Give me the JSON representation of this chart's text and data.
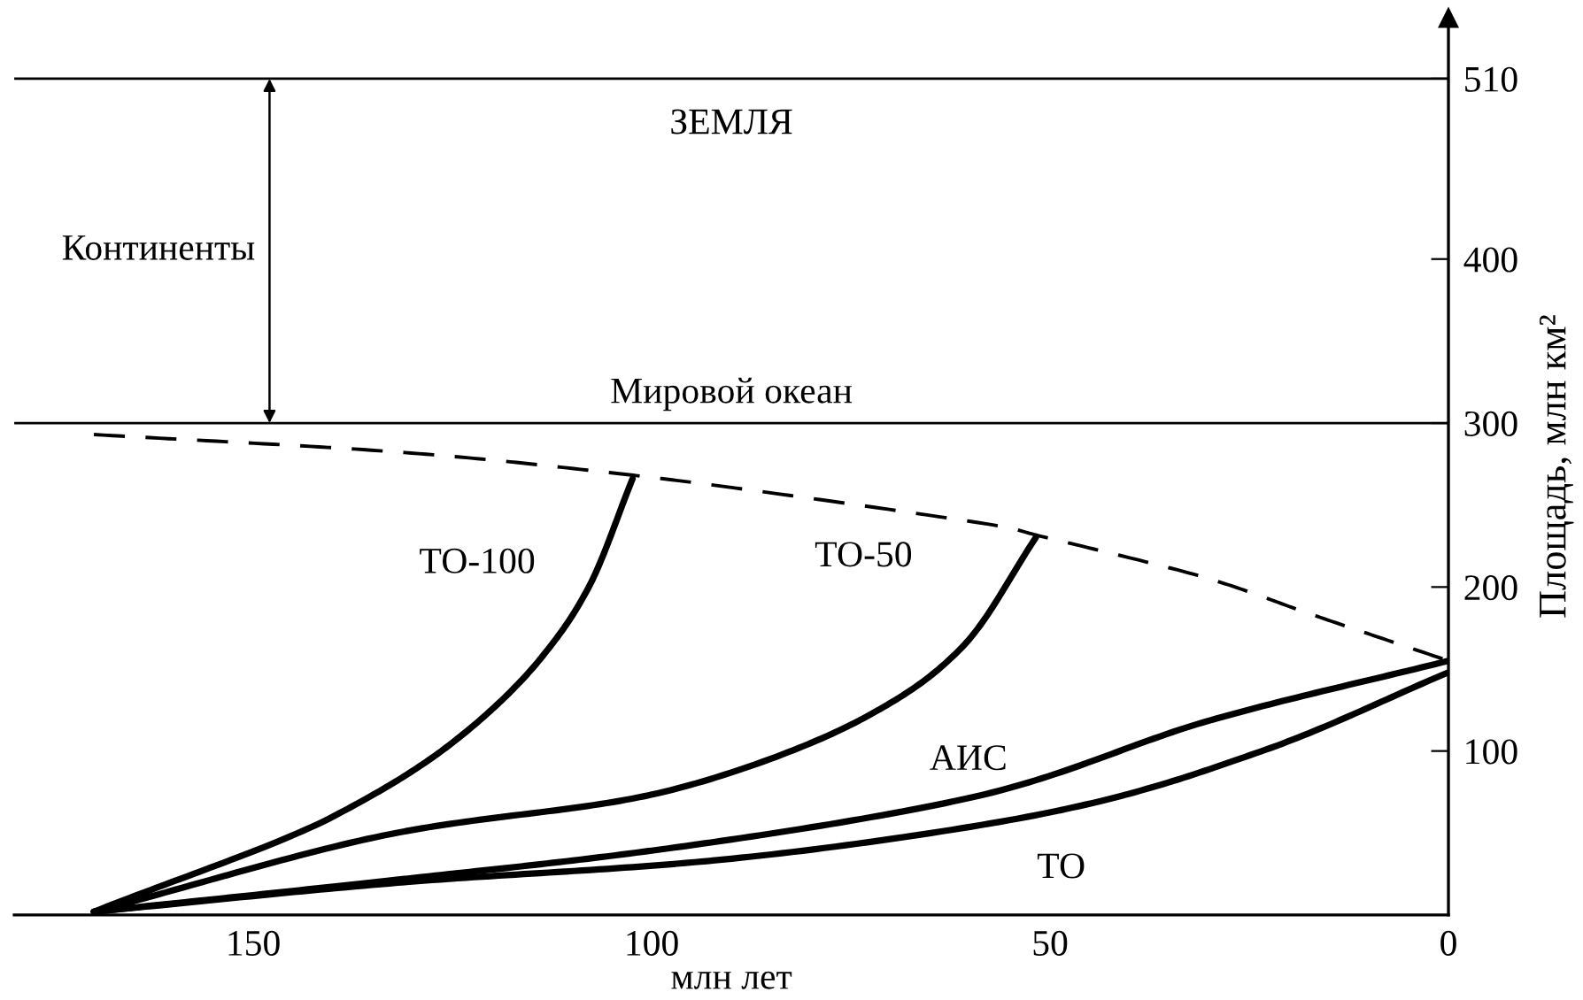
{
  "chart_data": {
    "type": "line",
    "xlabel": "млн лет",
    "ylabel": "Площадь, млн км²",
    "xlim": [
      180,
      0
    ],
    "xticks": [
      150,
      100,
      50,
      0
    ],
    "ylim": [
      0,
      547
    ],
    "yticks": [
      100,
      200,
      300,
      400,
      510
    ],
    "grid": false,
    "legend": false,
    "marker": "none",
    "series": [
      {
        "name": null,
        "line_style": "dashed",
        "color": "#000000",
        "x": [
          170,
          131,
          102,
          55,
          52,
          30,
          17,
          0
        ],
        "values": [
          293,
          282,
          268,
          236,
          232,
          205,
          183,
          155
        ]
      },
      {
        "name": "ТО-100",
        "line_style": "solid",
        "color": "#000000",
        "x": [
          170,
          140,
          124.5,
          114,
          108,
          102.4
        ],
        "values": [
          2,
          60,
          107,
          156,
          199,
          266
        ]
      },
      {
        "name": "ТО-50",
        "line_style": "solid",
        "color": "#000000",
        "x": [
          170,
          131,
          100.4,
          73.8,
          61.3,
          51.8
        ],
        "values": [
          2,
          51,
          73,
          119,
          162,
          230
        ]
      },
      {
        "name": "АИС",
        "line_style": "solid",
        "color": "#000000",
        "x": [
          170,
          131,
          100.4,
          58.7,
          29.7,
          0
        ],
        "values": [
          2,
          22,
          39,
          73,
          119,
          155
        ]
      },
      {
        "name": "ТО",
        "line_style": "solid",
        "color": "#000000",
        "x": [
          170,
          131,
          92.8,
          48.6,
          23.4,
          0
        ],
        "values": [
          2,
          20,
          33,
          64,
          100,
          148
        ]
      }
    ],
    "ref_lines": [
      {
        "axis": "y",
        "value": 510,
        "label": "ЗЕМЛЯ",
        "color": "#000000"
      },
      {
        "axis": "y",
        "value": 300,
        "label": "Мировой океан",
        "color": "#000000"
      }
    ],
    "annotations": [
      "Континенты"
    ]
  }
}
